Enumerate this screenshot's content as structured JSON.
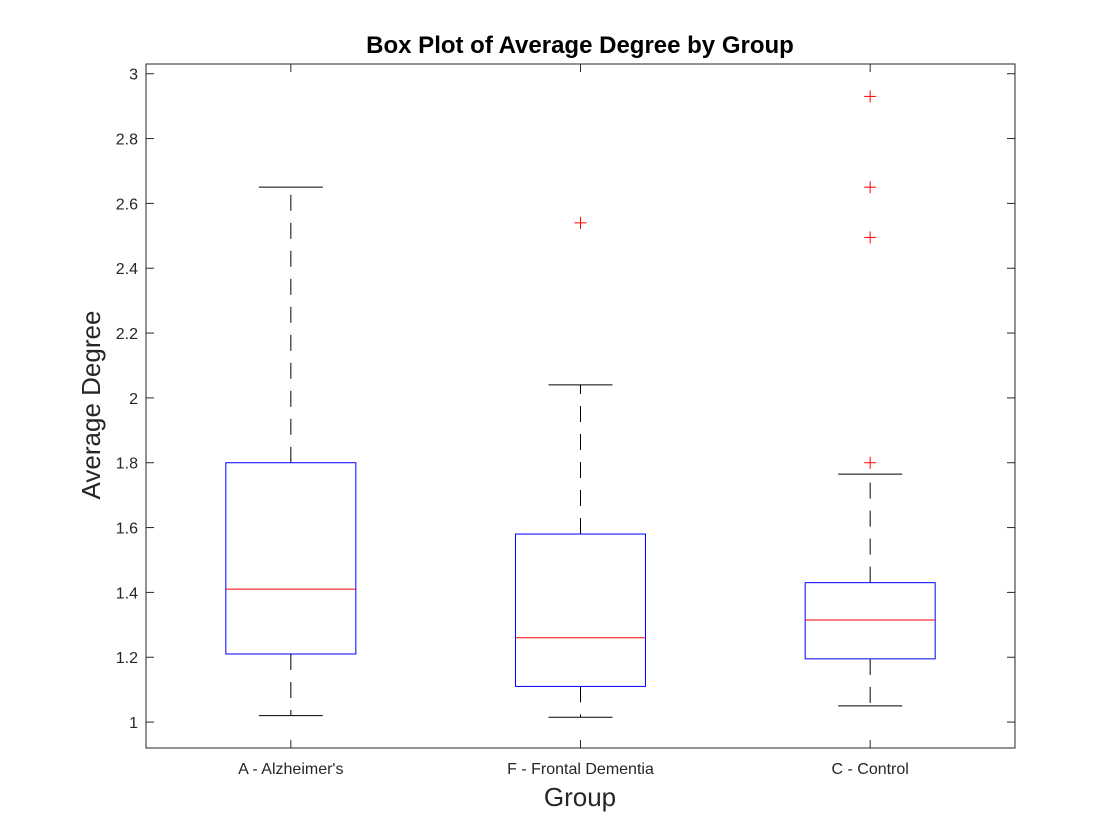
{
  "chart_data": {
    "type": "box",
    "title": "Box Plot of Average Degree by Group",
    "xlabel": "Group",
    "ylabel": "Average Degree",
    "ylim": [
      0.92,
      3.03
    ],
    "yticks": [
      1,
      1.2,
      1.4,
      1.6,
      1.8,
      2,
      2.2,
      2.4,
      2.6,
      2.8,
      3
    ],
    "ytick_labels": [
      "1",
      "1.2",
      "1.4",
      "1.6",
      "1.8",
      "2",
      "2.2",
      "2.4",
      "2.6",
      "2.8",
      "3"
    ],
    "grid": false,
    "categories": [
      "A - Alzheimer's",
      "F - Frontal Dementia",
      "C - Control"
    ],
    "boxes": [
      {
        "whisker_low": 1.02,
        "q1": 1.21,
        "median": 1.41,
        "q3": 1.8,
        "whisker_high": 2.65,
        "outliers": []
      },
      {
        "whisker_low": 1.015,
        "q1": 1.11,
        "median": 1.26,
        "q3": 1.58,
        "whisker_high": 2.04,
        "outliers": [
          2.54
        ]
      },
      {
        "whisker_low": 1.05,
        "q1": 1.195,
        "median": 1.315,
        "q3": 1.43,
        "whisker_high": 1.765,
        "outliers": [
          1.8,
          2.495,
          2.65,
          2.93
        ]
      }
    ],
    "colors": {
      "box": "#0000ff",
      "median": "#ff0000",
      "whisker": "#000000",
      "outlier": "#ff0000"
    }
  }
}
